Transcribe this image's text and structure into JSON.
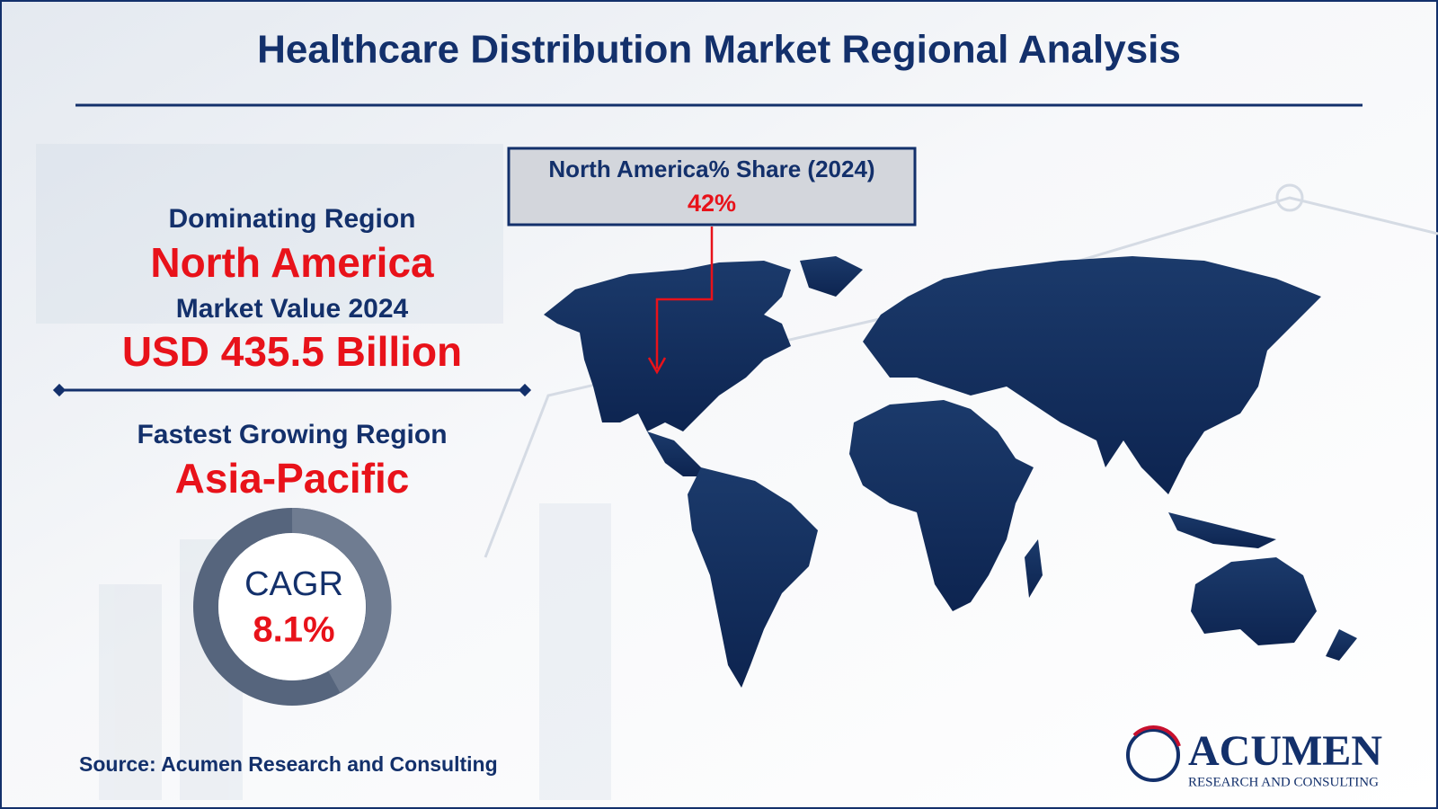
{
  "header": {
    "title": "Healthcare Distribution Market Regional Analysis"
  },
  "dominating": {
    "label": "Dominating Region",
    "region": "North America"
  },
  "market_value": {
    "label": "Market Value 2024",
    "value": "USD 435.5 Billion"
  },
  "fastest": {
    "label": "Fastest Growing Region",
    "region": "Asia-Pacific"
  },
  "cagr": {
    "label": "CAGR",
    "value": "8.1%"
  },
  "callout": {
    "label": "North America% Share (2024)",
    "value": "42%"
  },
  "source": "Source: Acumen Research and Consulting",
  "logo": {
    "name": "ACUMEN",
    "tagline": "RESEARCH AND CONSULTING"
  }
}
